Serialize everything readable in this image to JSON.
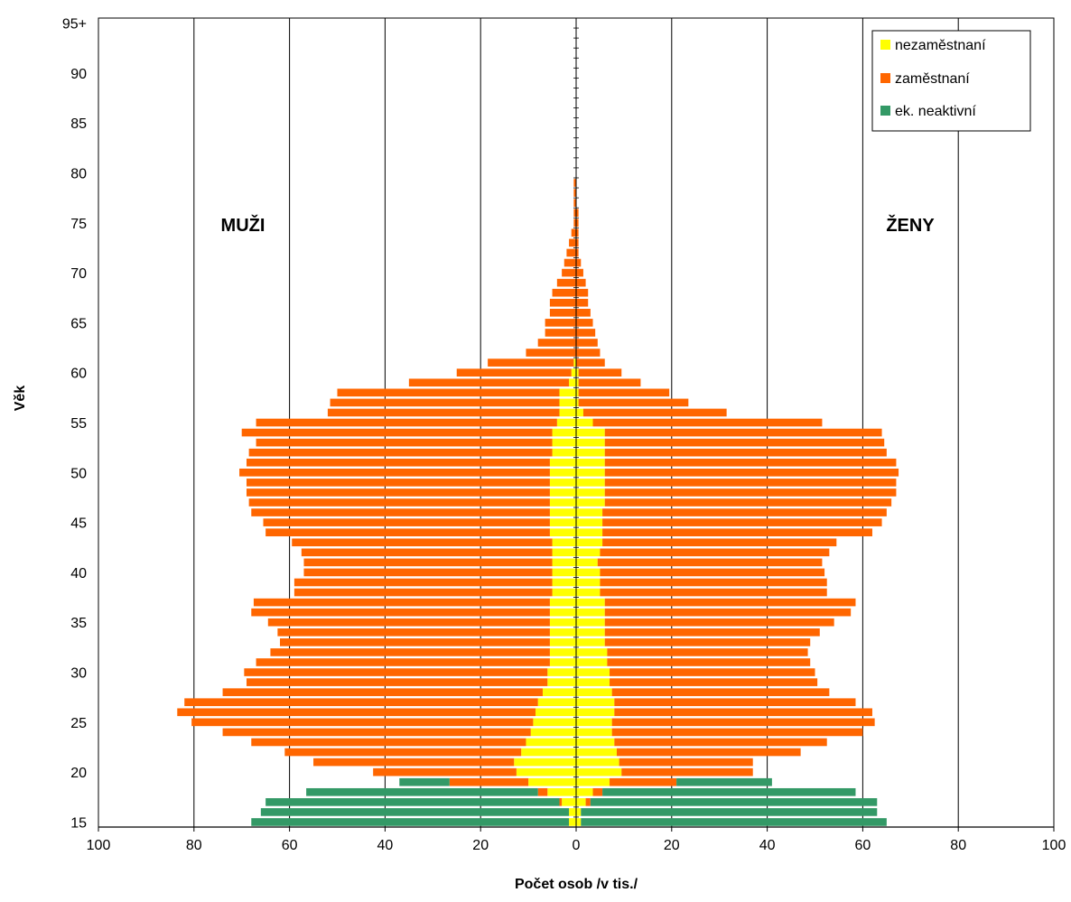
{
  "chart_data": {
    "type": "bar",
    "orientation": "horizontal",
    "stacked": true,
    "diverging": true,
    "xlabel": "Počet osob /v tis./",
    "ylabel": "Věk",
    "xlim": [
      -100,
      100
    ],
    "x_tick_values": [
      -100,
      -80,
      -60,
      -40,
      -20,
      0,
      20,
      40,
      60,
      80,
      100
    ],
    "x_tick_labels": [
      "100",
      "80",
      "60",
      "40",
      "20",
      "0",
      "20",
      "40",
      "60",
      "80",
      "100"
    ],
    "y_tick_labels": [
      "15",
      "20",
      "25",
      "30",
      "35",
      "40",
      "45",
      "50",
      "55",
      "60",
      "65",
      "70",
      "75",
      "80",
      "85",
      "90",
      "95+"
    ],
    "categories": [
      "15",
      "16",
      "17",
      "18",
      "19",
      "20",
      "21",
      "22",
      "23",
      "24",
      "25",
      "26",
      "27",
      "28",
      "29",
      "30",
      "31",
      "32",
      "33",
      "34",
      "35",
      "36",
      "37",
      "38",
      "39",
      "40",
      "41",
      "42",
      "43",
      "44",
      "45",
      "46",
      "47",
      "48",
      "49",
      "50",
      "51",
      "52",
      "53",
      "54",
      "55",
      "56",
      "57",
      "58",
      "59",
      "60",
      "61",
      "62",
      "63",
      "64",
      "65",
      "66",
      "67",
      "68",
      "69",
      "70",
      "71",
      "72",
      "73",
      "74",
      "75",
      "76",
      "77",
      "78",
      "79",
      "80",
      "81",
      "82",
      "83",
      "84",
      "85",
      "86",
      "87",
      "88",
      "89",
      "90",
      "91",
      "92",
      "93",
      "94",
      "95+"
    ],
    "grid": "vertical",
    "legend_position": "top-right",
    "side_labels": {
      "left": "MUŽI",
      "right": "ŽENY"
    },
    "colors": {
      "nezamestnani": "#ffff00",
      "zamestnani": "#ff6600",
      "ek_neaktivni": "#339966"
    },
    "series": [
      {
        "name": "nezaměstnaní",
        "key": "nezamestnani",
        "men": [
          1.5,
          1.5,
          3,
          6,
          10,
          12.5,
          13,
          11.5,
          10.5,
          9.5,
          9,
          8.5,
          8,
          7,
          6,
          6,
          5.5,
          5.5,
          5.5,
          5.5,
          5.5,
          5.5,
          5.5,
          5,
          5,
          5,
          5,
          5,
          5,
          5.5,
          5.5,
          5.5,
          5.5,
          5.5,
          5.5,
          5.5,
          5.5,
          5,
          5,
          5,
          4,
          3.5,
          3.5,
          3.5,
          1.5,
          1,
          0.5,
          0,
          0,
          0,
          0,
          0,
          0,
          0,
          0,
          0,
          0,
          0,
          0,
          0,
          0,
          0,
          0,
          0,
          0,
          0,
          0,
          0,
          0,
          0,
          0,
          0,
          0,
          0,
          0,
          0,
          0,
          0,
          0,
          0,
          0
        ],
        "women": [
          1,
          1,
          2,
          3.5,
          7,
          9.5,
          9,
          8.5,
          8,
          7.5,
          7.5,
          8,
          8,
          7.5,
          7,
          7,
          6.5,
          6.5,
          6,
          6,
          6,
          6,
          6,
          5,
          5,
          5,
          4.5,
          5,
          5.5,
          5.5,
          5.5,
          5.5,
          6,
          6,
          6,
          6,
          6,
          6,
          6,
          6,
          3.5,
          1.5,
          0.5,
          0.5,
          0.5,
          0.5,
          0,
          0,
          0,
          0,
          0,
          0,
          0,
          0,
          0,
          0,
          0,
          0,
          0,
          0,
          0,
          0,
          0,
          0,
          0,
          0,
          0,
          0,
          0,
          0,
          0,
          0,
          0,
          0,
          0,
          0,
          0,
          0,
          0,
          0,
          0
        ]
      },
      {
        "name": "zaměstnaní",
        "key": "zamestnani",
        "men": [
          0,
          0,
          0.5,
          2,
          16.5,
          30,
          42,
          49.5,
          57.5,
          64.5,
          71.5,
          75,
          74,
          67,
          63,
          63.5,
          61.5,
          58.5,
          56.5,
          57,
          59,
          62.5,
          62,
          54,
          54,
          52,
          52,
          52.5,
          54.5,
          59.5,
          60,
          62.5,
          63,
          63.5,
          63.5,
          65,
          63.5,
          63.5,
          62,
          65,
          63,
          48.5,
          48,
          46.5,
          33.5,
          24,
          18,
          10.5,
          8,
          6.5,
          6.5,
          5.5,
          5.5,
          5,
          4,
          3,
          2.5,
          2,
          1.5,
          1,
          0.5,
          0.5,
          0.5,
          0.5,
          0.5,
          0,
          0,
          0,
          0,
          0,
          0,
          0,
          0,
          0,
          0,
          0,
          0,
          0,
          0,
          0,
          0
        ],
        "women": [
          0,
          0,
          1,
          2,
          14,
          27.5,
          28,
          38.5,
          44.5,
          52.5,
          55,
          54,
          50.5,
          45.5,
          43.5,
          43,
          42.5,
          42,
          43,
          45,
          48,
          51.5,
          52.5,
          47.5,
          47.5,
          47,
          47,
          48,
          49,
          56.5,
          58.5,
          59.5,
          60,
          61,
          61,
          61.5,
          61,
          59,
          58.5,
          58,
          48,
          30,
          23,
          19,
          13,
          9,
          6,
          5,
          4.5,
          4,
          3.5,
          3,
          2.5,
          2.5,
          2,
          1.5,
          1,
          0.5,
          0.5,
          0.5,
          0.5,
          0.5,
          0,
          0,
          0,
          0,
          0,
          0,
          0,
          0,
          0,
          0,
          0,
          0,
          0,
          0,
          0,
          0,
          0,
          0,
          0
        ]
      },
      {
        "name": "ek. neaktivní",
        "key": "ek_neaktivni",
        "men": [
          66.5,
          64.5,
          61.5,
          48.5,
          10.5,
          0,
          0,
          0,
          0,
          0,
          0,
          0,
          0,
          0,
          0,
          0,
          0,
          0,
          0,
          0,
          0,
          0,
          0,
          0,
          0,
          0,
          0,
          0,
          0,
          0,
          0,
          0,
          0,
          0,
          0,
          0,
          0,
          0,
          0,
          0,
          0,
          0,
          0,
          0,
          0,
          0,
          0,
          0,
          0,
          0,
          0,
          0,
          0,
          0,
          0,
          0,
          0,
          0,
          0,
          0,
          0,
          0,
          0,
          0,
          0,
          0,
          0,
          0,
          0,
          0,
          0,
          0,
          0,
          0,
          0,
          0,
          0,
          0,
          0,
          0,
          0
        ],
        "women": [
          64,
          62,
          60,
          53,
          20,
          0,
          0,
          0,
          0,
          0,
          0,
          0,
          0,
          0,
          0,
          0,
          0,
          0,
          0,
          0,
          0,
          0,
          0,
          0,
          0,
          0,
          0,
          0,
          0,
          0,
          0,
          0,
          0,
          0,
          0,
          0,
          0,
          0,
          0,
          0,
          0,
          0,
          0,
          0,
          0,
          0,
          0,
          0,
          0,
          0,
          0,
          0,
          0,
          0,
          0,
          0,
          0,
          0,
          0,
          0,
          0,
          0,
          0,
          0,
          0,
          0,
          0,
          0,
          0,
          0,
          0,
          0,
          0,
          0,
          0,
          0,
          0,
          0,
          0,
          0,
          0
        ]
      }
    ]
  }
}
